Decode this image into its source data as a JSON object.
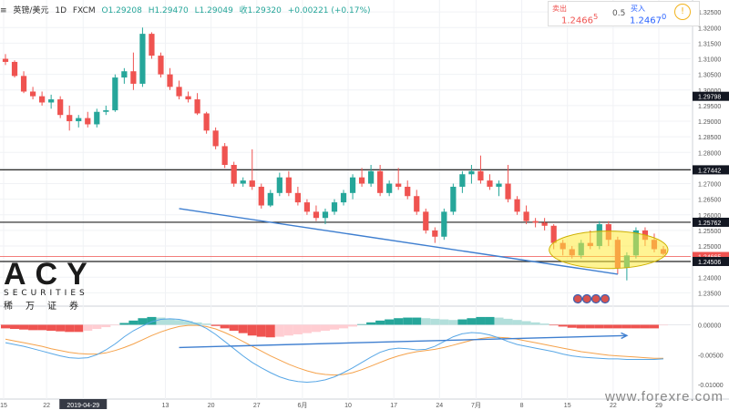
{
  "header": {
    "symbol": "英镑/美元",
    "timeframe": "1D",
    "source": "FXCM",
    "open": "O1.29208",
    "high": "H1.29470",
    "low": "L1.29049",
    "close": "收1.29320",
    "change": "+0.00221 (+0.17%)"
  },
  "trade_panel": {
    "sell_label": "卖出",
    "sell_value": "1.2466",
    "sell_sup": "5",
    "spread": "0.5",
    "buy_label": "买入",
    "buy_value": "1.2467",
    "buy_sup": "0"
  },
  "logo": {
    "big": "ACY",
    "small": "SECURITIES",
    "cn": "稀万证券"
  },
  "watermark": "www.forexre.com",
  "chart_data": [
    {
      "type": "candlestick",
      "title": "英镑/美元 1D FXCM",
      "y_ticks": [
        "1.32500",
        "1.32000",
        "1.31500",
        "1.31000",
        "1.30500",
        "1.30000",
        "1.29500",
        "1.29000",
        "1.28500",
        "1.28000",
        "1.27500",
        "1.27000",
        "1.26500",
        "1.26000",
        "1.25500",
        "1.25000",
        "1.24500",
        "1.24000",
        "1.23500"
      ],
      "ylim": [
        1.2325,
        1.3265
      ],
      "x_ticks": [
        "15",
        "22",
        "2019-04-29",
        "13",
        "20",
        "27",
        "6月",
        "10",
        "17",
        "24",
        "7月",
        "8",
        "15",
        "22",
        "29"
      ],
      "price_labels": [
        {
          "value": 1.29798,
          "text": "1.29798",
          "style": "dark"
        },
        {
          "value": 1.27442,
          "text": "1.27442",
          "style": "dark"
        },
        {
          "value": 1.25762,
          "text": "1.25762",
          "style": "dark"
        },
        {
          "value": 1.24665,
          "text": "1.24665",
          "style": "red"
        },
        {
          "value": 1.24506,
          "text": "1.24506",
          "style": "dark"
        }
      ],
      "horizontal_levels": [
        1.27442,
        1.25762,
        1.24506
      ],
      "candles": [
        {
          "o": 1.31,
          "h": 1.3115,
          "l": 1.308,
          "c": 1.309
        },
        {
          "o": 1.309,
          "h": 1.3095,
          "l": 1.304,
          "c": 1.3045
        },
        {
          "o": 1.3045,
          "h": 1.306,
          "l": 1.299,
          "c": 1.2995
        },
        {
          "o": 1.2995,
          "h": 1.301,
          "l": 1.297,
          "c": 1.298
        },
        {
          "o": 1.298,
          "h": 1.2995,
          "l": 1.295,
          "c": 1.296
        },
        {
          "o": 1.296,
          "h": 1.2985,
          "l": 1.294,
          "c": 1.297
        },
        {
          "o": 1.297,
          "h": 1.298,
          "l": 1.291,
          "c": 1.292
        },
        {
          "o": 1.292,
          "h": 1.295,
          "l": 1.287,
          "c": 1.29
        },
        {
          "o": 1.29,
          "h": 1.292,
          "l": 1.288,
          "c": 1.291
        },
        {
          "o": 1.291,
          "h": 1.293,
          "l": 1.288,
          "c": 1.289
        },
        {
          "o": 1.289,
          "h": 1.294,
          "l": 1.288,
          "c": 1.293
        },
        {
          "o": 1.293,
          "h": 1.295,
          "l": 1.292,
          "c": 1.2935
        },
        {
          "o": 1.2935,
          "h": 1.305,
          "l": 1.293,
          "c": 1.304
        },
        {
          "o": 1.304,
          "h": 1.307,
          "l": 1.302,
          "c": 1.306
        },
        {
          "o": 1.306,
          "h": 1.312,
          "l": 1.3,
          "c": 1.302
        },
        {
          "o": 1.302,
          "h": 1.32,
          "l": 1.301,
          "c": 1.318
        },
        {
          "o": 1.318,
          "h": 1.3185,
          "l": 1.31,
          "c": 1.311
        },
        {
          "o": 1.311,
          "h": 1.312,
          "l": 1.304,
          "c": 1.305
        },
        {
          "o": 1.305,
          "h": 1.307,
          "l": 1.3,
          "c": 1.301
        },
        {
          "o": 1.301,
          "h": 1.303,
          "l": 1.297,
          "c": 1.298
        },
        {
          "o": 1.298,
          "h": 1.2995,
          "l": 1.296,
          "c": 1.297
        },
        {
          "o": 1.297,
          "h": 1.299,
          "l": 1.292,
          "c": 1.2925
        },
        {
          "o": 1.2925,
          "h": 1.293,
          "l": 1.286,
          "c": 1.287
        },
        {
          "o": 1.287,
          "h": 1.288,
          "l": 1.281,
          "c": 1.282
        },
        {
          "o": 1.282,
          "h": 1.283,
          "l": 1.275,
          "c": 1.276
        },
        {
          "o": 1.276,
          "h": 1.277,
          "l": 1.269,
          "c": 1.27
        },
        {
          "o": 1.27,
          "h": 1.272,
          "l": 1.269,
          "c": 1.271
        },
        {
          "o": 1.271,
          "h": 1.281,
          "l": 1.268,
          "c": 1.269
        },
        {
          "o": 1.269,
          "h": 1.27,
          "l": 1.262,
          "c": 1.263
        },
        {
          "o": 1.263,
          "h": 1.268,
          "l": 1.2625,
          "c": 1.267
        },
        {
          "o": 1.267,
          "h": 1.2735,
          "l": 1.266,
          "c": 1.272
        },
        {
          "o": 1.272,
          "h": 1.274,
          "l": 1.266,
          "c": 1.267
        },
        {
          "o": 1.267,
          "h": 1.269,
          "l": 1.263,
          "c": 1.264
        },
        {
          "o": 1.264,
          "h": 1.265,
          "l": 1.26,
          "c": 1.261
        },
        {
          "o": 1.261,
          "h": 1.263,
          "l": 1.258,
          "c": 1.259
        },
        {
          "o": 1.259,
          "h": 1.262,
          "l": 1.257,
          "c": 1.261
        },
        {
          "o": 1.261,
          "h": 1.265,
          "l": 1.26,
          "c": 1.264
        },
        {
          "o": 1.264,
          "h": 1.268,
          "l": 1.263,
          "c": 1.267
        },
        {
          "o": 1.267,
          "h": 1.273,
          "l": 1.265,
          "c": 1.272
        },
        {
          "o": 1.272,
          "h": 1.275,
          "l": 1.269,
          "c": 1.27
        },
        {
          "o": 1.27,
          "h": 1.276,
          "l": 1.269,
          "c": 1.274
        },
        {
          "o": 1.274,
          "h": 1.276,
          "l": 1.266,
          "c": 1.267
        },
        {
          "o": 1.267,
          "h": 1.271,
          "l": 1.266,
          "c": 1.27
        },
        {
          "o": 1.27,
          "h": 1.275,
          "l": 1.268,
          "c": 1.269
        },
        {
          "o": 1.269,
          "h": 1.271,
          "l": 1.265,
          "c": 1.266
        },
        {
          "o": 1.266,
          "h": 1.268,
          "l": 1.26,
          "c": 1.261
        },
        {
          "o": 1.261,
          "h": 1.262,
          "l": 1.254,
          "c": 1.255
        },
        {
          "o": 1.255,
          "h": 1.256,
          "l": 1.251,
          "c": 1.253
        },
        {
          "o": 1.253,
          "h": 1.262,
          "l": 1.252,
          "c": 1.261
        },
        {
          "o": 1.261,
          "h": 1.27,
          "l": 1.26,
          "c": 1.269
        },
        {
          "o": 1.269,
          "h": 1.274,
          "l": 1.267,
          "c": 1.273
        },
        {
          "o": 1.273,
          "h": 1.276,
          "l": 1.27,
          "c": 1.274
        },
        {
          "o": 1.274,
          "h": 1.279,
          "l": 1.27,
          "c": 1.271
        },
        {
          "o": 1.271,
          "h": 1.273,
          "l": 1.268,
          "c": 1.269
        },
        {
          "o": 1.269,
          "h": 1.271,
          "l": 1.266,
          "c": 1.27
        },
        {
          "o": 1.27,
          "h": 1.276,
          "l": 1.264,
          "c": 1.265
        },
        {
          "o": 1.265,
          "h": 1.266,
          "l": 1.26,
          "c": 1.261
        },
        {
          "o": 1.261,
          "h": 1.263,
          "l": 1.257,
          "c": 1.258
        },
        {
          "o": 1.258,
          "h": 1.259,
          "l": 1.256,
          "c": 1.2575
        },
        {
          "o": 1.2575,
          "h": 1.259,
          "l": 1.255,
          "c": 1.2565
        },
        {
          "o": 1.2565,
          "h": 1.257,
          "l": 1.249,
          "c": 1.251
        },
        {
          "o": 1.251,
          "h": 1.252,
          "l": 1.247,
          "c": 1.249
        },
        {
          "o": 1.249,
          "h": 1.25,
          "l": 1.246,
          "c": 1.247
        },
        {
          "o": 1.247,
          "h": 1.252,
          "l": 1.246,
          "c": 1.251
        },
        {
          "o": 1.251,
          "h": 1.255,
          "l": 1.249,
          "c": 1.25
        },
        {
          "o": 1.25,
          "h": 1.258,
          "l": 1.249,
          "c": 1.257
        },
        {
          "o": 1.257,
          "h": 1.258,
          "l": 1.25,
          "c": 1.252
        },
        {
          "o": 1.252,
          "h": 1.253,
          "l": 1.241,
          "c": 1.243
        },
        {
          "o": 1.243,
          "h": 1.248,
          "l": 1.239,
          "c": 1.247
        },
        {
          "o": 1.247,
          "h": 1.256,
          "l": 1.246,
          "c": 1.255
        },
        {
          "o": 1.255,
          "h": 1.256,
          "l": 1.25,
          "c": 1.252
        },
        {
          "o": 1.252,
          "h": 1.254,
          "l": 1.248,
          "c": 1.249
        },
        {
          "o": 1.249,
          "h": 1.25,
          "l": 1.247,
          "c": 1.2475
        }
      ],
      "trendline": {
        "from": [
          19,
          1.262
        ],
        "to": [
          67,
          1.241
        ]
      },
      "ellipse": {
        "cx_index": 66,
        "cy": 1.2488,
        "rx_candles": 6.5,
        "ry_price": 0.006
      }
    },
    {
      "type": "macd",
      "y_ticks": [
        "0.00000",
        "-0.00500",
        "-0.01000"
      ],
      "ylim": [
        -0.0112,
        0.0022
      ],
      "histogram": [
        -0.0006,
        -0.0007,
        -0.0008,
        -0.0009,
        -0.0009,
        -0.001,
        -0.0011,
        -0.0012,
        -0.0012,
        -0.001,
        -0.0007,
        -0.0004,
        -0.0001,
        0.0003,
        0.0007,
        0.0011,
        0.0013,
        0.0012,
        0.001,
        0.0008,
        0.0006,
        0.0004,
        0.0002,
        -0.0002,
        -0.0006,
        -0.001,
        -0.0014,
        -0.0018,
        -0.002,
        -0.0021,
        -0.002,
        -0.0018,
        -0.0016,
        -0.0014,
        -0.0012,
        -0.001,
        -0.0008,
        -0.0006,
        -0.0003,
        0.0001,
        0.0004,
        0.0007,
        0.0009,
        0.0011,
        0.0012,
        0.0012,
        0.0011,
        0.001,
        0.0009,
        0.0008,
        0.0009,
        0.0011,
        0.0013,
        0.0013,
        0.0012,
        0.001,
        0.0008,
        0.0006,
        0.0004,
        0.0002,
        -0.0001,
        -0.0003,
        -0.0005,
        -0.0006,
        -0.0006,
        -0.0006,
        -0.0006,
        -0.0006,
        -0.0006,
        -0.0006,
        -0.0006,
        -0.0006,
        -0.0001
      ],
      "macd_line": [
        -0.003,
        -0.0033,
        -0.0036,
        -0.004,
        -0.0044,
        -0.0048,
        -0.0052,
        -0.0055,
        -0.0056,
        -0.0055,
        -0.005,
        -0.0042,
        -0.0032,
        -0.002,
        -0.001,
        -0.0002,
        0.0005,
        0.0009,
        0.001,
        0.0009,
        0.0006,
        0.0001,
        -0.0006,
        -0.0016,
        -0.0028,
        -0.004,
        -0.0052,
        -0.0063,
        -0.0072,
        -0.008,
        -0.0087,
        -0.0092,
        -0.0095,
        -0.0096,
        -0.0095,
        -0.0092,
        -0.0087,
        -0.008,
        -0.0072,
        -0.0063,
        -0.0054,
        -0.0046,
        -0.0041,
        -0.0039,
        -0.004,
        -0.0042,
        -0.0041,
        -0.0036,
        -0.0028,
        -0.002,
        -0.0015,
        -0.0013,
        -0.0014,
        -0.0017,
        -0.0022,
        -0.0028,
        -0.0033,
        -0.0036,
        -0.0039,
        -0.0042,
        -0.0045,
        -0.0049,
        -0.0052,
        -0.0054,
        -0.0055,
        -0.0056,
        -0.0057,
        -0.0057,
        -0.0058,
        -0.0058,
        -0.0058,
        -0.0058,
        -0.0057
      ],
      "signal_line": [
        -0.0024,
        -0.0027,
        -0.003,
        -0.0033,
        -0.0036,
        -0.004,
        -0.0043,
        -0.0046,
        -0.0048,
        -0.0049,
        -0.0049,
        -0.0047,
        -0.0043,
        -0.0038,
        -0.0032,
        -0.0025,
        -0.0018,
        -0.0012,
        -0.0007,
        -0.0003,
        -0.0001,
        -0.0001,
        -0.0003,
        -0.0007,
        -0.0013,
        -0.002,
        -0.0028,
        -0.0036,
        -0.0044,
        -0.0052,
        -0.0059,
        -0.0066,
        -0.0072,
        -0.0077,
        -0.0081,
        -0.0083,
        -0.0084,
        -0.0083,
        -0.008,
        -0.0075,
        -0.0069,
        -0.0063,
        -0.0057,
        -0.0052,
        -0.0048,
        -0.0045,
        -0.0043,
        -0.0041,
        -0.0038,
        -0.0034,
        -0.003,
        -0.0026,
        -0.0023,
        -0.0021,
        -0.0021,
        -0.0022,
        -0.0024,
        -0.0027,
        -0.003,
        -0.0033,
        -0.0036,
        -0.0039,
        -0.0042,
        -0.0045,
        -0.0047,
        -0.0049,
        -0.0051,
        -0.0052,
        -0.0053,
        -0.0054,
        -0.0055,
        -0.0056,
        -0.0056
      ],
      "arrow": {
        "from": [
          19,
          -0.0038
        ],
        "to": [
          68,
          -0.0018
        ]
      }
    }
  ]
}
